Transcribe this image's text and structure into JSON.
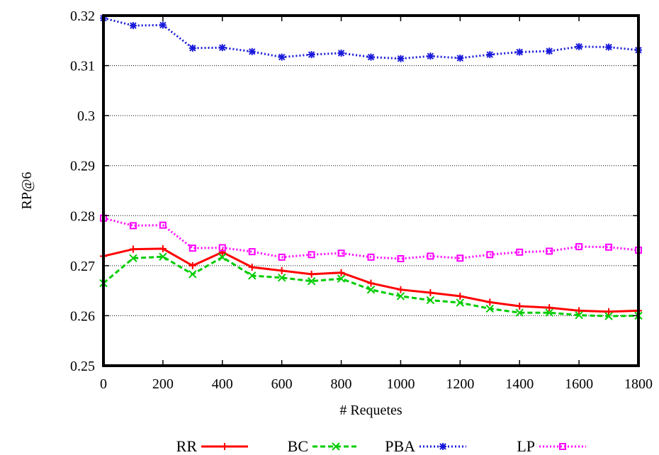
{
  "chart_data": {
    "type": "line",
    "title": "",
    "xlabel": "# Requetes",
    "ylabel": "RP@6",
    "xlim": [
      0,
      1800
    ],
    "ylim": [
      0.25,
      0.32
    ],
    "x_ticks": [
      0,
      200,
      400,
      600,
      800,
      1000,
      1200,
      1400,
      1600,
      1800
    ],
    "x_tick_labels": [
      "0",
      "200",
      "400",
      "600",
      "800",
      "1000",
      "1200",
      "1400",
      "1600",
      "1800"
    ],
    "y_ticks": [
      0.25,
      0.26,
      0.27,
      0.28,
      0.29,
      0.3,
      0.31,
      0.32
    ],
    "y_tick_labels": [
      "0.25",
      "0.26",
      "0.27",
      "0.28",
      "0.29",
      "0.3",
      "0.31",
      "0.32"
    ],
    "grid": "horizontal dotted",
    "legend_position": "bottom",
    "x": [
      0,
      100,
      200,
      300,
      400,
      500,
      600,
      700,
      800,
      900,
      1000,
      1100,
      1200,
      1300,
      1400,
      1500,
      1600,
      1700,
      1800
    ],
    "series": [
      {
        "name": "RR",
        "color": "#ff0000",
        "marker": "plus",
        "dash": "solid",
        "values": [
          0.2719,
          0.2733,
          0.2734,
          0.27,
          0.2727,
          0.2697,
          0.269,
          0.2683,
          0.2686,
          0.2665,
          0.2652,
          0.2646,
          0.2639,
          0.2627,
          0.2619,
          0.2616,
          0.261,
          0.2608,
          0.261
        ]
      },
      {
        "name": "BC",
        "color": "#00cc00",
        "marker": "cross",
        "dash": "dashed",
        "values": [
          0.2665,
          0.2715,
          0.2718,
          0.2683,
          0.2717,
          0.268,
          0.2676,
          0.2669,
          0.2674,
          0.2652,
          0.2639,
          0.2631,
          0.2626,
          0.2614,
          0.2606,
          0.2606,
          0.2601,
          0.2599,
          0.26
        ]
      },
      {
        "name": "PBA",
        "color": "#1a1adb",
        "marker": "star",
        "dash": "dotted",
        "values": [
          0.3195,
          0.318,
          0.3181,
          0.3135,
          0.3136,
          0.3128,
          0.3117,
          0.3122,
          0.3125,
          0.3117,
          0.3114,
          0.3119,
          0.3115,
          0.3122,
          0.3127,
          0.3129,
          0.3138,
          0.3137,
          0.3131
        ]
      },
      {
        "name": "LP",
        "color": "#ff00ff",
        "marker": "square",
        "dash": "dotted",
        "values": [
          0.2795,
          0.278,
          0.2781,
          0.2735,
          0.2736,
          0.2728,
          0.2717,
          0.2722,
          0.2725,
          0.2717,
          0.2714,
          0.2719,
          0.2715,
          0.2722,
          0.2727,
          0.2729,
          0.2738,
          0.2737,
          0.2731
        ]
      }
    ]
  }
}
